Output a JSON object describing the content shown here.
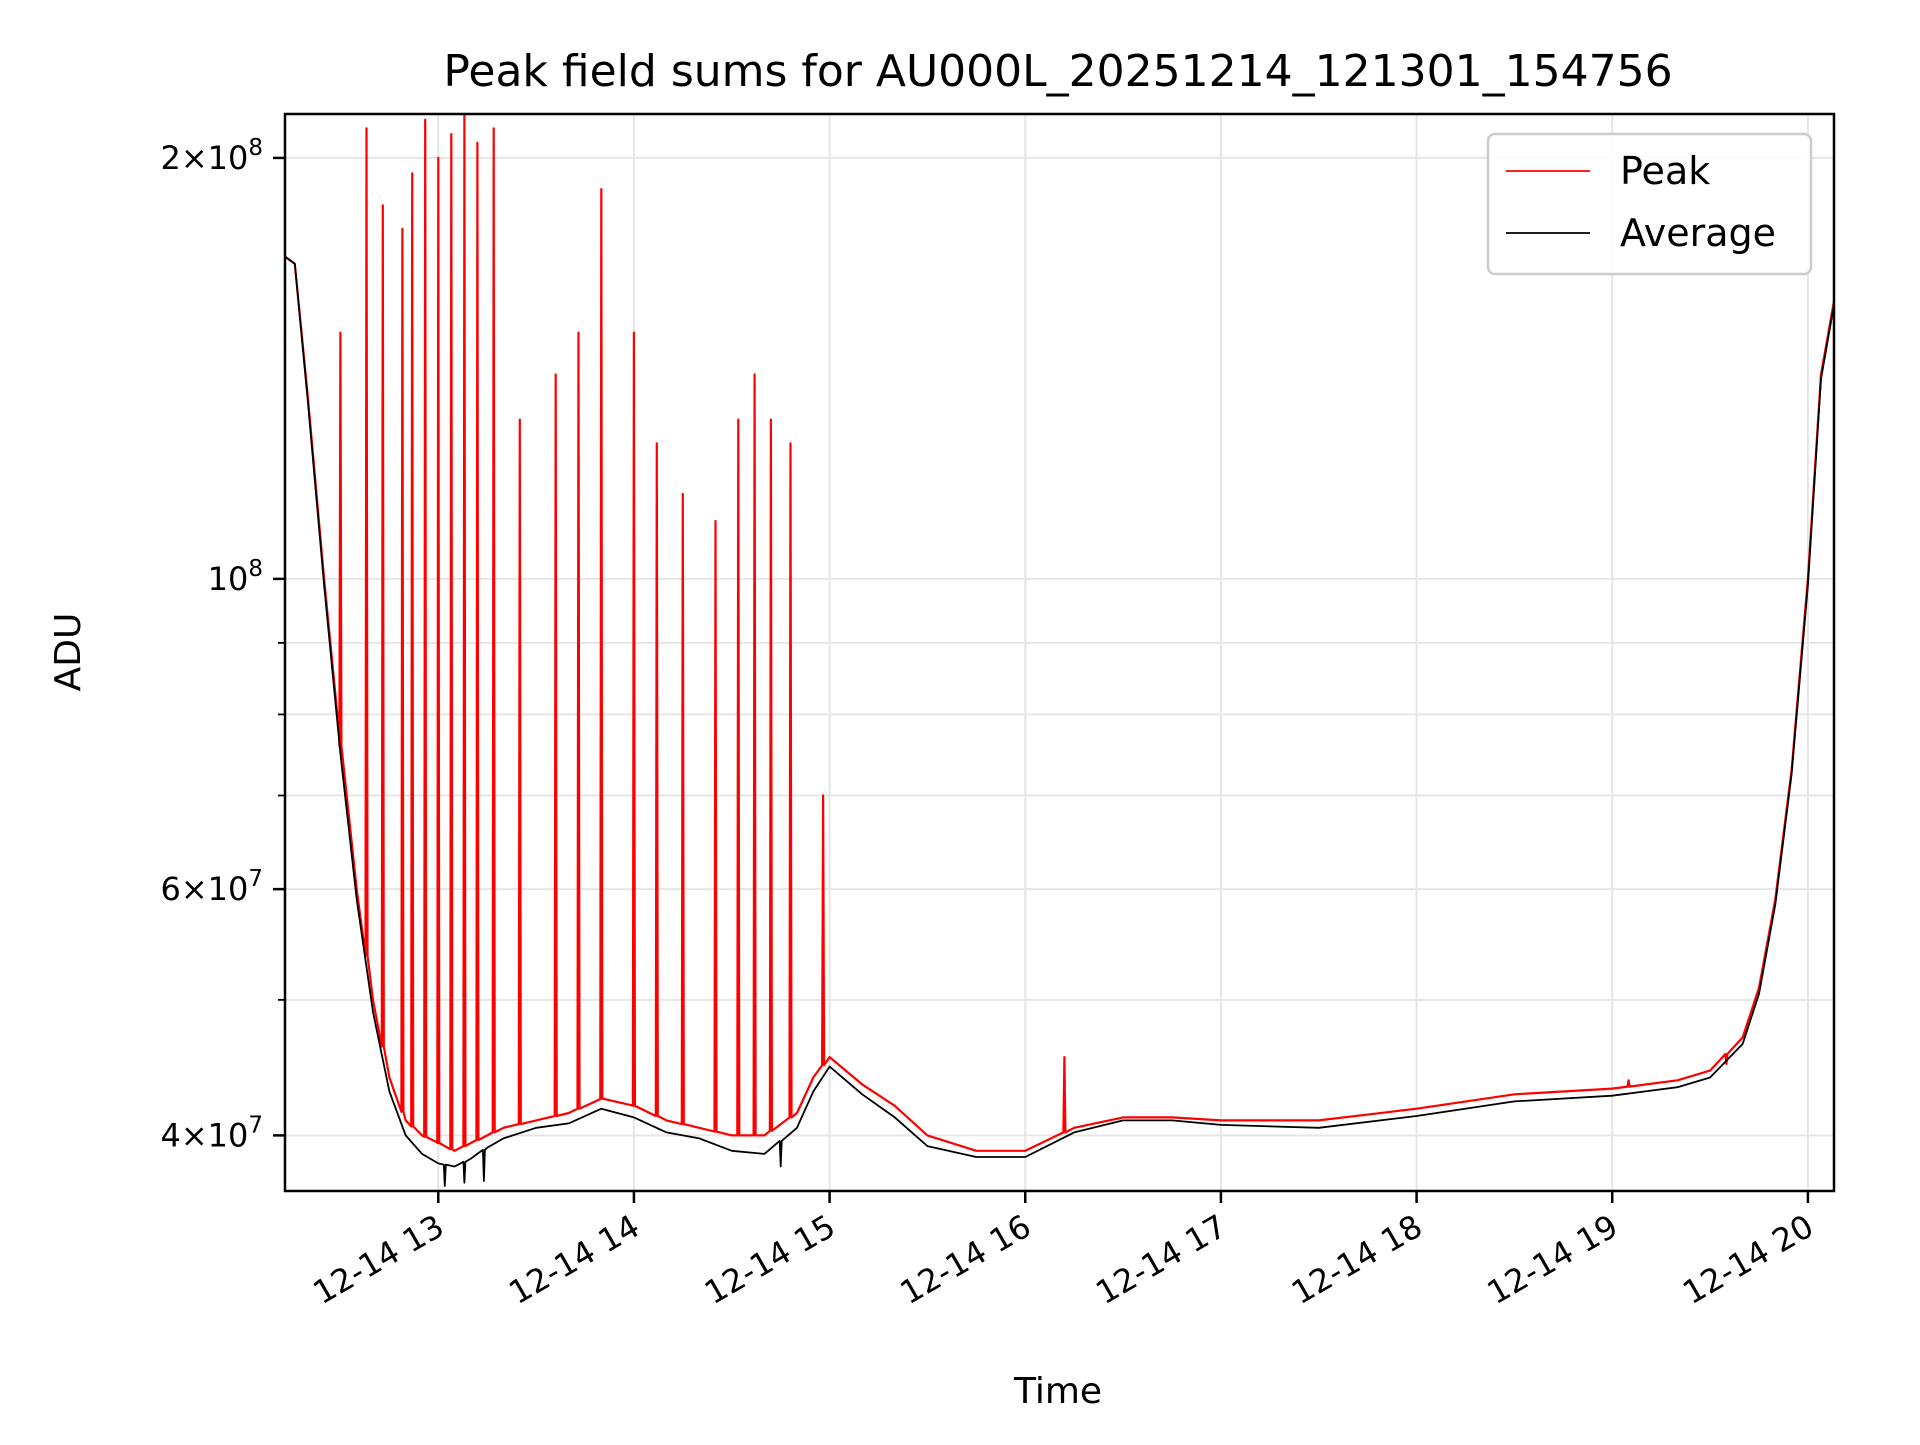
{
  "chart_data": {
    "type": "line",
    "title": "Peak field sums for AU000L_20251214_121301_154756",
    "xlabel": "Time",
    "ylabel": "ADU",
    "yscale": "log",
    "ylim": [
      36500000,
      215000000
    ],
    "xlim": [
      "2025-12-14 12:13",
      "2025-12-14 20:08"
    ],
    "x_ticks": [
      {
        "value": "2025-12-14 13:00",
        "label": "12-14 13"
      },
      {
        "value": "2025-12-14 14:00",
        "label": "12-14 14"
      },
      {
        "value": "2025-12-14 15:00",
        "label": "12-14 15"
      },
      {
        "value": "2025-12-14 16:00",
        "label": "12-14 16"
      },
      {
        "value": "2025-12-14 17:00",
        "label": "12-14 17"
      },
      {
        "value": "2025-12-14 18:00",
        "label": "12-14 18"
      },
      {
        "value": "2025-12-14 19:00",
        "label": "12-14 19"
      },
      {
        "value": "2025-12-14 20:00",
        "label": "12-14 20"
      }
    ],
    "y_ticks": [
      {
        "value": 40000000,
        "mantissa": "4",
        "exponent": "7"
      },
      {
        "value": 60000000,
        "mantissa": "6",
        "exponent": "7"
      },
      {
        "value": 100000000,
        "mantissa": "",
        "exponent": "8"
      },
      {
        "value": 200000000,
        "mantissa": "2",
        "exponent": "8"
      }
    ],
    "y_minor_gridlines": [
      50000000,
      70000000,
      80000000,
      90000000
    ],
    "grid": true,
    "legend": {
      "placement": "top-right"
    },
    "series": [
      {
        "name": "Peak",
        "color": "#ff0000",
        "x": [
          "2025-12-14 12:13",
          "2025-12-14 12:16",
          "2025-12-14 12:20",
          "2025-12-14 12:25",
          "2025-12-14 12:30",
          "2025-12-14 12:35",
          "2025-12-14 12:40",
          "2025-12-14 12:45",
          "2025-12-14 12:50",
          "2025-12-14 12:55",
          "2025-12-14 13:00",
          "2025-12-14 13:05",
          "2025-12-14 13:10",
          "2025-12-14 13:15",
          "2025-12-14 13:20",
          "2025-12-14 13:30",
          "2025-12-14 13:40",
          "2025-12-14 13:50",
          "2025-12-14 14:00",
          "2025-12-14 14:10",
          "2025-12-14 14:20",
          "2025-12-14 14:30",
          "2025-12-14 14:40",
          "2025-12-14 14:50",
          "2025-12-14 14:55",
          "2025-12-14 15:00",
          "2025-12-14 15:10",
          "2025-12-14 15:20",
          "2025-12-14 15:30",
          "2025-12-14 15:45",
          "2025-12-14 16:00",
          "2025-12-14 16:15",
          "2025-12-14 16:30",
          "2025-12-14 16:45",
          "2025-12-14 17:00",
          "2025-12-14 17:30",
          "2025-12-14 18:00",
          "2025-12-14 18:30",
          "2025-12-14 19:00",
          "2025-12-14 19:20",
          "2025-12-14 19:30",
          "2025-12-14 19:40",
          "2025-12-14 19:45",
          "2025-12-14 19:50",
          "2025-12-14 19:55",
          "2025-12-14 20:00",
          "2025-12-14 20:04",
          "2025-12-14 20:08"
        ],
        "y": [
          170000000,
          168000000,
          135000000,
          100000000,
          76000000,
          60000000,
          50000000,
          44000000,
          41000000,
          40000000,
          39500000,
          39000000,
          39500000,
          40000000,
          40500000,
          41000000,
          41500000,
          42500000,
          42000000,
          41000000,
          40500000,
          40000000,
          40000000,
          41500000,
          44000000,
          45500000,
          43500000,
          42000000,
          40000000,
          39000000,
          39000000,
          40500000,
          41200000,
          41200000,
          41000000,
          41000000,
          41800000,
          42800000,
          43200000,
          43800000,
          44500000,
          47000000,
          51000000,
          59000000,
          73000000,
          100000000,
          140000000,
          158000000
        ]
      },
      {
        "name": "Average",
        "color": "#000000",
        "x": [
          "2025-12-14 12:13",
          "2025-12-14 12:16",
          "2025-12-14 12:20",
          "2025-12-14 12:25",
          "2025-12-14 12:30",
          "2025-12-14 12:35",
          "2025-12-14 12:40",
          "2025-12-14 12:45",
          "2025-12-14 12:50",
          "2025-12-14 12:55",
          "2025-12-14 13:00",
          "2025-12-14 13:05",
          "2025-12-14 13:10",
          "2025-12-14 13:15",
          "2025-12-14 13:20",
          "2025-12-14 13:30",
          "2025-12-14 13:40",
          "2025-12-14 13:50",
          "2025-12-14 14:00",
          "2025-12-14 14:10",
          "2025-12-14 14:20",
          "2025-12-14 14:30",
          "2025-12-14 14:40",
          "2025-12-14 14:50",
          "2025-12-14 14:55",
          "2025-12-14 15:00",
          "2025-12-14 15:10",
          "2025-12-14 15:20",
          "2025-12-14 15:30",
          "2025-12-14 15:45",
          "2025-12-14 16:00",
          "2025-12-14 16:15",
          "2025-12-14 16:30",
          "2025-12-14 16:45",
          "2025-12-14 17:00",
          "2025-12-14 17:30",
          "2025-12-14 18:00",
          "2025-12-14 18:30",
          "2025-12-14 19:00",
          "2025-12-14 19:20",
          "2025-12-14 19:30",
          "2025-12-14 19:40",
          "2025-12-14 19:45",
          "2025-12-14 19:50",
          "2025-12-14 19:55",
          "2025-12-14 20:00",
          "2025-12-14 20:04",
          "2025-12-14 20:08"
        ],
        "y": [
          170000000,
          168000000,
          134000000,
          99000000,
          75000000,
          59000000,
          49000000,
          43000000,
          40000000,
          38800000,
          38200000,
          38000000,
          38500000,
          39200000,
          39800000,
          40500000,
          40800000,
          41800000,
          41200000,
          40200000,
          39800000,
          39000000,
          38800000,
          40500000,
          43000000,
          44800000,
          42800000,
          41200000,
          39300000,
          38600000,
          38600000,
          40200000,
          41000000,
          41000000,
          40700000,
          40500000,
          41300000,
          42300000,
          42700000,
          43300000,
          44000000,
          46500000,
          50500000,
          58500000,
          72500000,
          99000000,
          139000000,
          157000000
        ]
      }
    ],
    "spikes": {
      "Peak": [
        [
          "2025-12-14 12:30",
          150000000
        ],
        [
          "2025-12-14 12:38",
          210000000
        ],
        [
          "2025-12-14 12:43",
          185000000
        ],
        [
          "2025-12-14 12:49",
          178000000
        ],
        [
          "2025-12-14 12:52",
          195000000
        ],
        [
          "2025-12-14 12:56",
          213000000
        ],
        [
          "2025-12-14 13:00",
          200000000
        ],
        [
          "2025-12-14 13:04",
          208000000
        ],
        [
          "2025-12-14 13:08",
          215000000
        ],
        [
          "2025-12-14 13:12",
          205000000
        ],
        [
          "2025-12-14 13:17",
          210000000
        ],
        [
          "2025-12-14 13:25",
          130000000
        ],
        [
          "2025-12-14 13:36",
          140000000
        ],
        [
          "2025-12-14 13:43",
          150000000
        ],
        [
          "2025-12-14 13:50",
          190000000
        ],
        [
          "2025-12-14 14:00",
          150000000
        ],
        [
          "2025-12-14 14:07",
          125000000
        ],
        [
          "2025-12-14 14:15",
          115000000
        ],
        [
          "2025-12-14 14:25",
          110000000
        ],
        [
          "2025-12-14 14:32",
          130000000
        ],
        [
          "2025-12-14 14:37",
          140000000
        ],
        [
          "2025-12-14 14:42",
          130000000
        ],
        [
          "2025-12-14 14:48",
          125000000
        ],
        [
          "2025-12-14 14:58",
          70000000
        ],
        [
          "2025-12-14 16:12",
          45500000
        ],
        [
          "2025-12-14 19:05",
          43800000
        ],
        [
          "2025-12-14 19:35",
          45000000
        ]
      ],
      "Average": [
        [
          "2025-12-14 13:02",
          36800000
        ],
        [
          "2025-12-14 13:08",
          37000000
        ],
        [
          "2025-12-14 13:14",
          37100000
        ],
        [
          "2025-12-14 14:45",
          38000000
        ]
      ]
    }
  }
}
